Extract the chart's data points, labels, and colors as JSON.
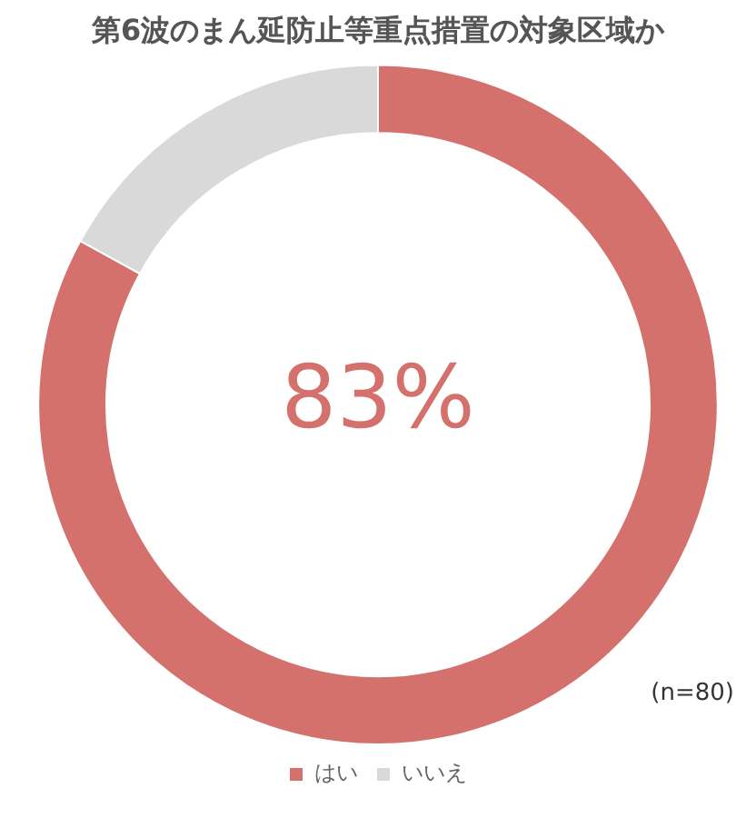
{
  "chart_data": {
    "type": "donut",
    "title": "第6波のまん延防止等重点措置の対象区域か",
    "categories": [
      "はい",
      "いいえ"
    ],
    "values": [
      83,
      17
    ],
    "colors": [
      "#d4716d",
      "#d9d9d9"
    ],
    "legend": "bottom",
    "annotations": [
      "83%",
      "(n=80)"
    ]
  }
}
